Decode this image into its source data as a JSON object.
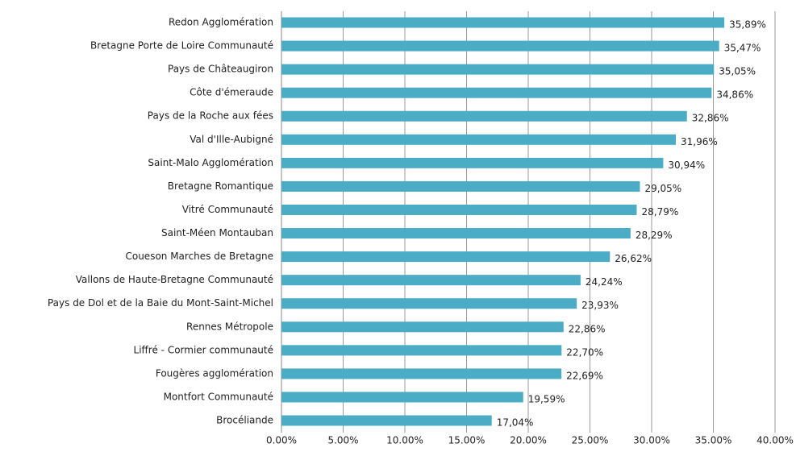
{
  "chart_data": {
    "type": "bar",
    "orientation": "horizontal",
    "categories": [
      "Redon Agglomération",
      "Bretagne Porte de Loire Communauté",
      "Pays de Châteaugiron",
      "Côte d'émeraude",
      "Pays de la Roche aux fées",
      "Val d'Ille-Aubigné",
      "Saint-Malo Agglomération",
      "Bretagne Romantique",
      "Vitré Communauté",
      "Saint-Méen Montauban",
      "Coueson Marches de Bretagne",
      "Vallons de Haute-Bretagne Communauté",
      "Pays de Dol et de la Baie du Mont-Saint-Michel",
      "Rennes Métropole",
      "Liffré - Cormier communauté",
      "Fougères agglomération",
      "Montfort Communauté",
      "Brocéliande"
    ],
    "values": [
      35.89,
      35.47,
      35.05,
      34.86,
      32.86,
      31.96,
      30.94,
      29.05,
      28.79,
      28.29,
      26.62,
      24.24,
      23.93,
      22.86,
      22.7,
      22.69,
      19.59,
      17.04
    ],
    "value_labels": [
      "35,89%",
      "35,47%",
      "35,05%",
      "34,86%",
      "32,86%",
      "31,96%",
      "30,94%",
      "29,05%",
      "28,79%",
      "28,29%",
      "26,62%",
      "24,24%",
      "23,93%",
      "22,86%",
      "22,70%",
      "22,69%",
      "19,59%",
      "17,04%"
    ],
    "color": "#4bacc6",
    "xlim": [
      0,
      40
    ],
    "xticks": [
      {
        "value": 0,
        "label": "0.00%"
      },
      {
        "value": 5,
        "label": "5.00%"
      },
      {
        "value": 10,
        "label": "10.00%"
      },
      {
        "value": 15,
        "label": "15.00%"
      },
      {
        "value": 20,
        "label": "20.00%"
      },
      {
        "value": 25,
        "label": "25.00%"
      },
      {
        "value": 30,
        "label": "30.00%"
      },
      {
        "value": 35,
        "label": "35.00%"
      },
      {
        "value": 40,
        "label": "40.00%"
      }
    ],
    "grid": true
  }
}
